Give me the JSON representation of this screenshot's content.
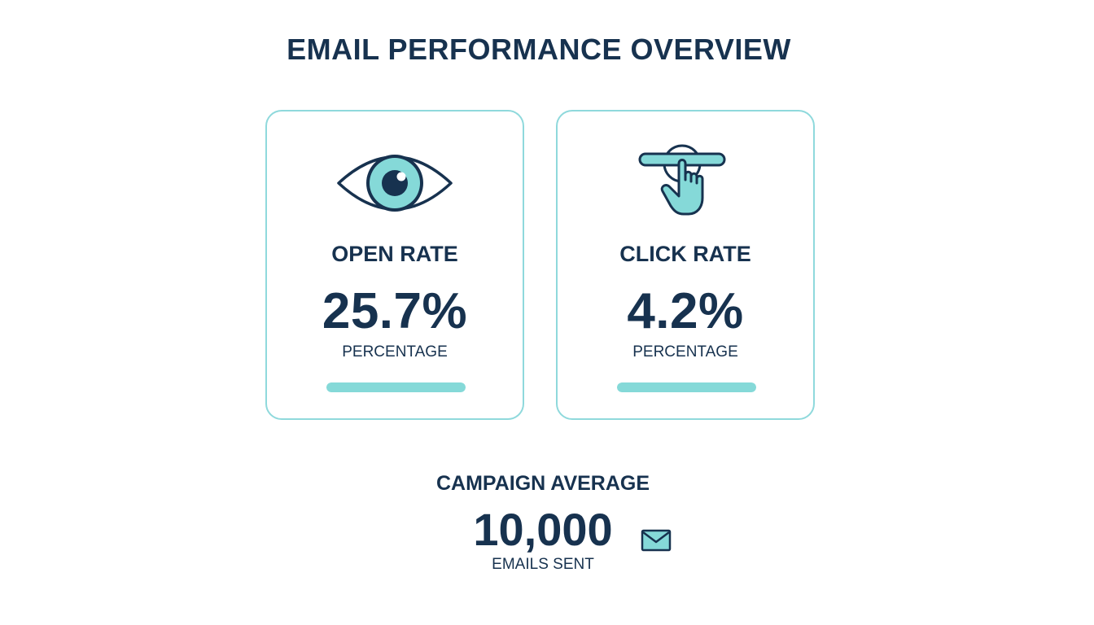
{
  "header": {
    "title": "EMAIL PERFORMANCE OVERVIEW"
  },
  "cards": [
    {
      "label": "OPEN RATE",
      "value": "25.7%",
      "unit": "PERCENTAGE",
      "icon": "eye-icon",
      "bar_fill_fraction": 1.0
    },
    {
      "label": "CLICK RATE",
      "value": "4.2%",
      "unit": "PERCENTAGE",
      "icon": "pointer-hand-icon",
      "bar_fill_fraction": 1.0
    }
  ],
  "summary": {
    "label": "CAMPAIGN AVERAGE",
    "value": "10,000",
    "unit": "EMAILS SENT",
    "icon": "envelope-icon"
  },
  "colors": {
    "text": "#17324f",
    "accent": "#85d9d8",
    "card_border": "#8fd9dc"
  }
}
